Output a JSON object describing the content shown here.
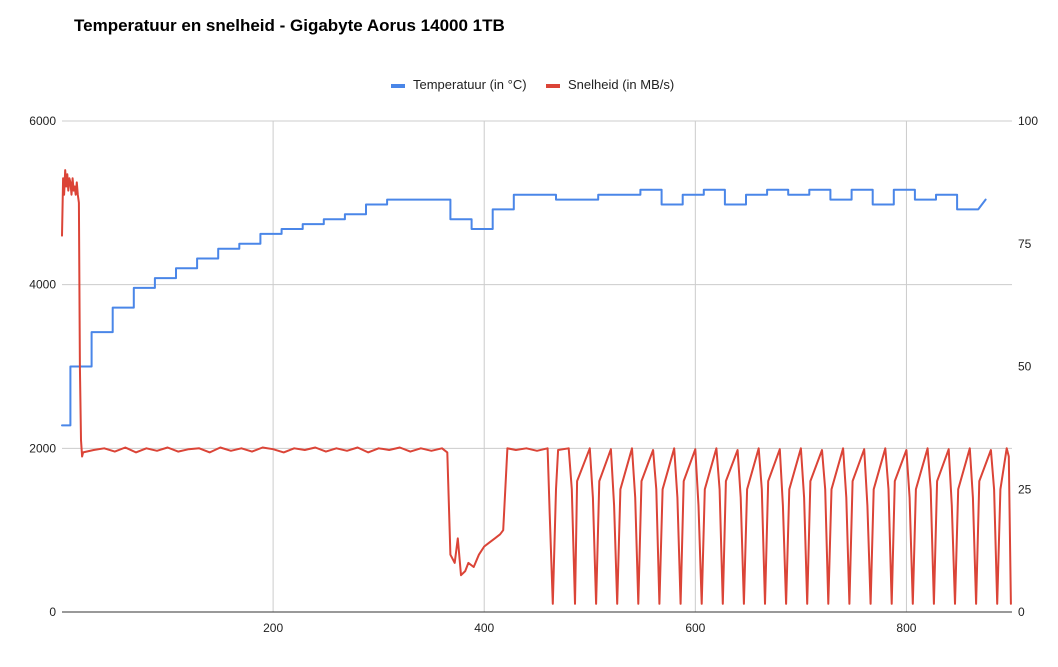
{
  "chart_data": {
    "type": "line",
    "title": "Temperatuur en snelheid - Gigabyte Aorus 14000 1TB",
    "legend_position": "top",
    "grid": true,
    "x_axis": {
      "range": [
        0,
        900
      ],
      "ticks": [
        "200",
        "400",
        "600",
        "800"
      ]
    },
    "y_left": {
      "range": [
        0,
        6000
      ],
      "ticks": [
        "0",
        "2000",
        "4000",
        "6000"
      ]
    },
    "y_right": {
      "range": [
        0,
        100
      ],
      "ticks": [
        "0",
        "25",
        "50",
        "75",
        "100"
      ]
    },
    "series": [
      {
        "name": "Temperatuur (in °C)",
        "axis": "right",
        "color": "#4a86e8",
        "x": [
          0,
          8,
          8,
          28,
          28,
          48,
          48,
          68,
          68,
          88,
          88,
          108,
          108,
          128,
          128,
          148,
          148,
          168,
          168,
          188,
          188,
          208,
          208,
          228,
          228,
          248,
          248,
          268,
          268,
          288,
          288,
          308,
          308,
          368,
          368,
          388,
          388,
          408,
          408,
          428,
          428,
          468,
          468,
          508,
          508,
          548,
          548,
          568,
          568,
          588,
          588,
          608,
          608,
          628,
          628,
          648,
          648,
          668,
          668,
          688,
          688,
          708,
          708,
          728,
          728,
          748,
          748,
          768,
          768,
          788,
          788,
          808,
          808,
          828,
          828,
          848,
          848,
          868,
          868,
          875,
          875
        ],
        "y": [
          38,
          38,
          50,
          50,
          57,
          57,
          62,
          62,
          66,
          66,
          68,
          68,
          70,
          70,
          72,
          72,
          74,
          74,
          75,
          75,
          77,
          77,
          78,
          78,
          79,
          79,
          80,
          80,
          81,
          81,
          83,
          83,
          84,
          84,
          80,
          80,
          78,
          78,
          82,
          82,
          85,
          85,
          84,
          84,
          85,
          85,
          86,
          86,
          83,
          83,
          85,
          85,
          86,
          86,
          83,
          83,
          85,
          85,
          86,
          86,
          85,
          85,
          86,
          86,
          84,
          84,
          86,
          86,
          83,
          83,
          86,
          86,
          84,
          84,
          85,
          85,
          82,
          82,
          82,
          84,
          84
        ]
      },
      {
        "name": "Snelheid (in MB/s)",
        "axis": "left",
        "color": "#db4437",
        "x": [
          0,
          1,
          2,
          3,
          4,
          5,
          6,
          7,
          8,
          9,
          10,
          11,
          12,
          13,
          14,
          15,
          16,
          17,
          18,
          19,
          20,
          30,
          40,
          50,
          60,
          70,
          80,
          90,
          100,
          110,
          120,
          130,
          140,
          150,
          160,
          170,
          180,
          190,
          200,
          210,
          220,
          230,
          240,
          250,
          260,
          270,
          280,
          290,
          300,
          310,
          320,
          330,
          340,
          350,
          360,
          365,
          368,
          372,
          375,
          378,
          382,
          385,
          390,
          395,
          400,
          405,
          410,
          415,
          418,
          422,
          430,
          440,
          450,
          460,
          462,
          465,
          468,
          470,
          480,
          483,
          486,
          488,
          500,
          503,
          506,
          509,
          520,
          523,
          526,
          529,
          540,
          543,
          546,
          549,
          560,
          563,
          566,
          569,
          580,
          583,
          586,
          589,
          600,
          603,
          606,
          609,
          620,
          623,
          626,
          629,
          640,
          643,
          646,
          649,
          660,
          663,
          666,
          669,
          680,
          683,
          686,
          689,
          700,
          703,
          706,
          709,
          720,
          723,
          726,
          729,
          740,
          743,
          746,
          749,
          760,
          763,
          766,
          769,
          780,
          783,
          786,
          789,
          800,
          803,
          806,
          809,
          820,
          823,
          826,
          829,
          840,
          843,
          846,
          849,
          860,
          863,
          866,
          869,
          880,
          883,
          886,
          889,
          895,
          897,
          899
        ],
        "y": [
          4600,
          5300,
          5100,
          5400,
          5200,
          5350,
          5150,
          5300,
          5250,
          5100,
          5300,
          5150,
          5200,
          5100,
          5250,
          5100,
          5000,
          3000,
          2100,
          1900,
          1950,
          1980,
          2000,
          1960,
          2010,
          1950,
          2000,
          1970,
          2010,
          1960,
          1990,
          2000,
          1950,
          2010,
          1970,
          2000,
          1960,
          2010,
          1990,
          1950,
          2000,
          1980,
          2010,
          1960,
          2000,
          1970,
          2010,
          1950,
          2000,
          1980,
          2010,
          1960,
          2000,
          1970,
          2000,
          1950,
          700,
          600,
          900,
          450,
          500,
          600,
          550,
          700,
          800,
          850,
          900,
          950,
          1000,
          2000,
          1980,
          2000,
          1970,
          2000,
          1200,
          100,
          1500,
          1980,
          2000,
          1500,
          100,
          1600,
          2000,
          1400,
          100,
          1600,
          1990,
          1300,
          100,
          1500,
          2000,
          1400,
          100,
          1600,
          1980,
          1500,
          100,
          1500,
          2000,
          1400,
          100,
          1600,
          1990,
          1300,
          100,
          1500,
          2000,
          1500,
          100,
          1600,
          1980,
          1400,
          100,
          1500,
          2000,
          1500,
          100,
          1600,
          1990,
          1300,
          100,
          1500,
          2000,
          1400,
          100,
          1600,
          1980,
          1500,
          100,
          1500,
          2000,
          1400,
          100,
          1600,
          1990,
          1300,
          100,
          1500,
          2000,
          1500,
          100,
          1600,
          1980,
          1400,
          100,
          1500,
          2000,
          1500,
          100,
          1600,
          1990,
          1300,
          100,
          1500,
          2000,
          1400,
          100,
          1600,
          1980,
          1500,
          100,
          1500,
          2000,
          1900,
          100
        ]
      }
    ]
  }
}
